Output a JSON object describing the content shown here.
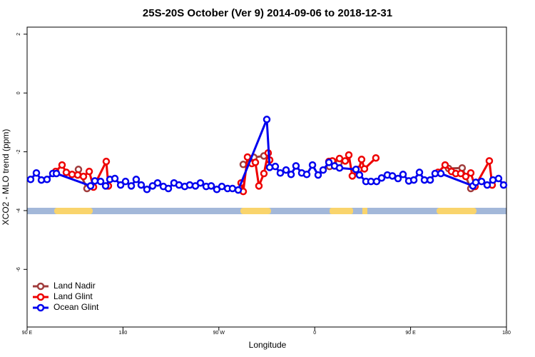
{
  "chart_data": {
    "type": "line",
    "title": "25S-20S October (Ver 9)   2014-09-06 to 2018-12-31",
    "x_label": "Longitude",
    "y_label": "XCO2 - MLO trend (ppm)",
    "xlim": [
      90,
      540
    ],
    "ylim": [
      -7.96,
      2.24
    ],
    "xticks": [
      {
        "value": 90,
        "label": "90 E"
      },
      180,
      {
        "value": 270,
        "label": "90 W"
      },
      {
        "value": 360,
        "label": "0"
      },
      {
        "value": 450,
        "label": "90 E"
      },
      {
        "value": 540,
        "label": "180"
      }
    ],
    "yticks": [
      2,
      0,
      -2,
      -4,
      -6
    ],
    "legend_position": "bottom-left",
    "series": [
      {
        "name": "Land Nadir",
        "color": "#a03c3c",
        "x": [
          138.2,
          146.2,
          292.9,
          302.9,
          312.3,
          373.9,
          382.6,
          485.7,
          498.4,
          506.5
        ],
        "values": [
          -2.6,
          -3.25,
          -2.43,
          -2.19,
          -2.14,
          -2.5,
          -2.38,
          -2.57,
          -2.55,
          -3.25
        ]
      },
      {
        "name": "Land Glint",
        "color": "#ee0000",
        "x": [
          116.8,
          122.8,
          126.8,
          132.2,
          137.5,
          142.9,
          148.3,
          152.3,
          164.3,
          166.3,
          290.9,
          292.9,
          296.9,
          301,
          304.3,
          307.6,
          312.3,
          316.3,
          317.7,
          373.3,
          376.6,
          383.3,
          388.6,
          392,
          395.3,
          401.4,
          404,
          406.7,
          417.4,
          475.7,
          482.4,
          488.4,
          492.4,
          497.1,
          501.8,
          506.5,
          510.5,
          523.9,
          526.6
        ],
        "values": [
          -2.67,
          -2.45,
          -2.7,
          -2.77,
          -2.79,
          -2.84,
          -2.67,
          -3.2,
          -2.33,
          -3.16,
          -3.06,
          -3.35,
          -2.18,
          -2.4,
          -2.36,
          -3.16,
          -2.74,
          -2.04,
          -2.28,
          -2.33,
          -2.31,
          -2.23,
          -2.31,
          -2.11,
          -2.82,
          -2.6,
          -2.26,
          -2.58,
          -2.21,
          -2.7,
          -2.45,
          -2.67,
          -2.74,
          -2.74,
          -2.84,
          -2.72,
          -3.18,
          -2.31,
          -3.13
        ]
      },
      {
        "name": "Ocean Glint",
        "color": "#0000ee",
        "x": [
          93.3,
          98.7,
          103.4,
          108.7,
          114.1,
          117.5,
          149.6,
          153.6,
          159,
          163.7,
          167.7,
          172.4,
          177.8,
          182.4,
          187.8,
          192.4,
          197.1,
          202.5,
          207.8,
          212.5,
          217.9,
          222.6,
          227.9,
          232.6,
          238,
          242.7,
          248,
          252.7,
          258.1,
          262.8,
          268.1,
          272.8,
          278.2,
          282.8,
          288.2,
          315,
          317.7,
          323,
          327.7,
          333.1,
          337.8,
          342.4,
          347.8,
          352.5,
          357.9,
          363.2,
          367.9,
          373.3,
          378.6,
          383.3,
          398.7,
          402,
          408.1,
          412.8,
          418.1,
          422.8,
          428.2,
          432.9,
          438.2,
          442.9,
          448.3,
          453,
          458.3,
          463,
          468.4,
          473,
          478.4,
          508.5,
          511.2,
          516.6,
          521.9,
          527.3,
          532.6,
          537.3
        ],
        "values": [
          -2.94,
          -2.72,
          -2.96,
          -2.94,
          -2.74,
          -2.74,
          -3.16,
          -2.99,
          -3.01,
          -3.16,
          -2.94,
          -2.91,
          -3.13,
          -3.01,
          -3.16,
          -2.94,
          -3.13,
          -3.28,
          -3.16,
          -3.06,
          -3.18,
          -3.25,
          -3.06,
          -3.13,
          -3.18,
          -3.13,
          -3.16,
          -3.06,
          -3.18,
          -3.16,
          -3.28,
          -3.18,
          -3.25,
          -3.25,
          -3.3,
          -0.9,
          -2.53,
          -2.5,
          -2.72,
          -2.62,
          -2.77,
          -2.48,
          -2.72,
          -2.77,
          -2.45,
          -2.79,
          -2.62,
          -2.36,
          -2.48,
          -2.55,
          -2.6,
          -2.79,
          -3.01,
          -3.01,
          -3.01,
          -2.89,
          -2.79,
          -2.82,
          -2.91,
          -2.77,
          -2.99,
          -2.96,
          -2.7,
          -2.96,
          -2.96,
          -2.74,
          -2.74,
          -3.16,
          -3.04,
          -3.01,
          -3.13,
          -2.96,
          -2.91,
          -3.13
        ]
      }
    ]
  }
}
